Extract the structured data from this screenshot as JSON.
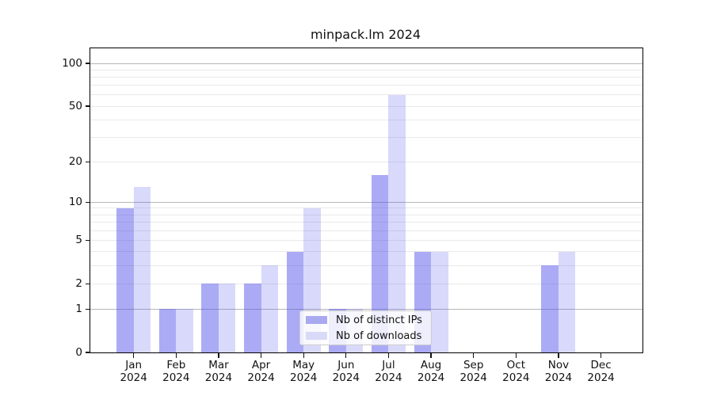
{
  "title": "minpack.lm 2024",
  "chart_data": {
    "type": "bar",
    "title": "minpack.lm 2024",
    "categories": [
      "Jan",
      "Feb",
      "Mar",
      "Apr",
      "May",
      "Jun",
      "Jul",
      "Aug",
      "Sep",
      "Oct",
      "Nov",
      "Dec"
    ],
    "year_label": "2024",
    "series": [
      {
        "name": "Nb of distinct IPs",
        "fill": "rgba(80,80,235,0.48)",
        "swatch": "#a9a9f2",
        "values": [
          9,
          1,
          2,
          2,
          4,
          1,
          16,
          4,
          0,
          0,
          3,
          0
        ]
      },
      {
        "name": "Nb of downloads",
        "fill": "rgba(80,80,235,0.22)",
        "swatch": "#d9d9f8",
        "values": [
          13,
          1,
          2,
          3,
          9,
          1,
          60,
          4,
          0,
          0,
          4,
          0
        ]
      }
    ],
    "yscale": "log1p",
    "ylim": [
      0,
      100
    ],
    "y_ticks": [
      0,
      1,
      2,
      5,
      10,
      20,
      50,
      100
    ],
    "major_gridlines": [
      1,
      10,
      100
    ],
    "minor_gridlines": [
      2,
      3,
      4,
      5,
      6,
      7,
      8,
      9,
      20,
      30,
      40,
      50,
      60,
      70,
      80,
      90
    ],
    "grid": true,
    "legend_position": "lower center",
    "xlabel": "",
    "ylabel": ""
  },
  "colors": {
    "major_grid": "#b6b6b6",
    "minor_grid": "#e9e9e9",
    "axis": "#000000",
    "bar_ips": "#a9a9f2",
    "bar_downloads": "#d9d9f8"
  }
}
